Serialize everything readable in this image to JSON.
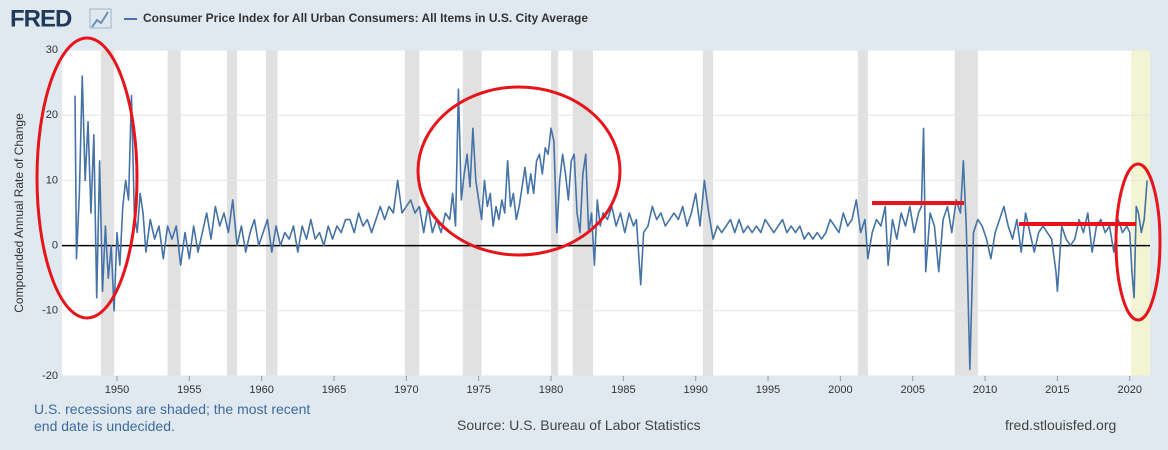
{
  "chart_data": {
    "type": "line",
    "logo": "FRED",
    "ylabel": "Compounded Annual Rate of Change",
    "notes": "U.S. recessions are shaded; the most recent end date is undecided.",
    "source": "Source: U.S. Bureau of Labor Statistics",
    "website": "fred.stlouisfed.org",
    "xlim": [
      1946.2,
      2021.4
    ],
    "xticks": [
      1950,
      1955,
      1960,
      1965,
      1970,
      1975,
      1980,
      1985,
      1990,
      1995,
      2000,
      2005,
      2010,
      2015,
      2020
    ],
    "ylim": [
      -20,
      30
    ],
    "yticks": [
      -20,
      -10,
      0,
      10,
      20,
      30
    ],
    "grid": true,
    "recession_color": "#e1e1e1",
    "recessions": [
      [
        1948.9,
        1949.8
      ],
      [
        1953.5,
        1954.4
      ],
      [
        1957.6,
        1958.3
      ],
      [
        1960.3,
        1961.1
      ],
      [
        1969.9,
        1970.9
      ],
      [
        1973.9,
        1975.2
      ],
      [
        1980.0,
        1980.5
      ],
      [
        1981.5,
        1982.9
      ],
      [
        1990.5,
        1991.2
      ],
      [
        2001.2,
        2001.9
      ],
      [
        2007.9,
        2009.5
      ]
    ],
    "ongoing_recession_color": "#f3f4d2",
    "ongoing_recession": [
      2020.1,
      2021.4
    ],
    "x": [
      1947.1,
      1947.2,
      1947.4,
      1947.6,
      1947.8,
      1948.0,
      1948.2,
      1948.4,
      1948.6,
      1948.8,
      1949.0,
      1949.2,
      1949.4,
      1949.6,
      1949.8,
      1950.0,
      1950.2,
      1950.4,
      1950.6,
      1950.8,
      1951.0,
      1951.2,
      1951.4,
      1951.6,
      1951.8,
      1952.0,
      1952.3,
      1952.6,
      1952.9,
      1953.2,
      1953.5,
      1953.8,
      1954.1,
      1954.4,
      1954.7,
      1955.0,
      1955.3,
      1955.6,
      1955.9,
      1956.2,
      1956.5,
      1956.8,
      1957.1,
      1957.4,
      1957.7,
      1958.0,
      1958.3,
      1958.6,
      1958.9,
      1959.2,
      1959.5,
      1959.8,
      1960.1,
      1960.4,
      1960.7,
      1961.0,
      1961.3,
      1961.6,
      1961.9,
      1962.2,
      1962.5,
      1962.8,
      1963.1,
      1963.4,
      1963.7,
      1964.0,
      1964.3,
      1964.6,
      1964.9,
      1965.2,
      1965.5,
      1965.8,
      1966.1,
      1966.4,
      1966.7,
      1967.0,
      1967.3,
      1967.6,
      1967.9,
      1968.2,
      1968.5,
      1968.8,
      1969.1,
      1969.4,
      1969.7,
      1970.0,
      1970.3,
      1970.6,
      1970.9,
      1971.2,
      1971.5,
      1971.8,
      1972.1,
      1972.4,
      1972.7,
      1973.0,
      1973.2,
      1973.4,
      1973.6,
      1973.8,
      1974.0,
      1974.2,
      1974.4,
      1974.6,
      1974.8,
      1975.0,
      1975.2,
      1975.4,
      1975.6,
      1975.8,
      1976.0,
      1976.2,
      1976.4,
      1976.6,
      1976.8,
      1977.0,
      1977.2,
      1977.4,
      1977.6,
      1977.8,
      1978.0,
      1978.2,
      1978.4,
      1978.6,
      1978.8,
      1979.0,
      1979.2,
      1979.4,
      1979.6,
      1979.8,
      1980.0,
      1980.2,
      1980.4,
      1980.6,
      1980.8,
      1981.0,
      1981.2,
      1981.4,
      1981.6,
      1981.8,
      1982.0,
      1982.2,
      1982.4,
      1982.6,
      1982.8,
      1983.0,
      1983.2,
      1983.4,
      1983.6,
      1983.9,
      1984.2,
      1984.5,
      1984.8,
      1985.1,
      1985.4,
      1985.7,
      1985.9,
      1986.2,
      1986.4,
      1986.7,
      1987.0,
      1987.3,
      1987.6,
      1987.9,
      1988.2,
      1988.5,
      1988.8,
      1989.1,
      1989.4,
      1989.7,
      1990.0,
      1990.3,
      1990.6,
      1990.9,
      1991.2,
      1991.5,
      1991.8,
      1992.1,
      1992.4,
      1992.7,
      1993.0,
      1993.3,
      1993.6,
      1993.9,
      1994.2,
      1994.5,
      1994.8,
      1995.1,
      1995.4,
      1995.7,
      1996.0,
      1996.3,
      1996.6,
      1996.9,
      1997.2,
      1997.5,
      1997.8,
      1998.1,
      1998.4,
      1998.7,
      1999.0,
      1999.3,
      1999.6,
      1999.9,
      2000.2,
      2000.5,
      2000.8,
      2001.1,
      2001.4,
      2001.7,
      2001.9,
      2002.2,
      2002.5,
      2002.8,
      2003.1,
      2003.3,
      2003.6,
      2003.9,
      2004.2,
      2004.5,
      2004.8,
      2005.1,
      2005.4,
      2005.6,
      2005.75,
      2005.9,
      2006.2,
      2006.5,
      2006.8,
      2007.1,
      2007.4,
      2007.7,
      2008.0,
      2008.3,
      2008.5,
      2008.7,
      2008.85,
      2008.95,
      2009.2,
      2009.5,
      2009.8,
      2010.1,
      2010.4,
      2010.7,
      2011.0,
      2011.3,
      2011.6,
      2011.9,
      2012.2,
      2012.5,
      2012.8,
      2013.1,
      2013.4,
      2013.7,
      2014.0,
      2014.3,
      2014.6,
      2014.9,
      2015.0,
      2015.3,
      2015.6,
      2015.9,
      2016.2,
      2016.5,
      2016.8,
      2017.1,
      2017.4,
      2017.7,
      2018.0,
      2018.3,
      2018.6,
      2018.9,
      2019.2,
      2019.5,
      2019.8,
      2020.0,
      2020.15,
      2020.3,
      2020.45,
      2020.6,
      2020.8,
      2021.0,
      2021.2
    ],
    "series": [
      {
        "name": "Consumer Price Index for All Urban Consumers: All Items in U.S. City Average",
        "color": "#4572a7",
        "values": [
          23,
          -2,
          8,
          26,
          10,
          19,
          5,
          17,
          -8,
          13,
          -7,
          3,
          -5,
          0,
          -10,
          2,
          -3,
          6,
          10,
          7,
          23,
          5,
          2,
          8,
          5,
          -1,
          4,
          1,
          3,
          -2,
          3,
          1,
          3,
          -3,
          2,
          -2,
          3,
          -1,
          2,
          5,
          1,
          6,
          3,
          5,
          2,
          7,
          0,
          3,
          -1,
          2,
          4,
          0,
          2,
          4,
          -1,
          3,
          0,
          2,
          1,
          3,
          -1,
          3,
          1,
          4,
          1,
          2,
          0,
          3,
          1,
          3,
          2,
          4,
          4,
          2,
          5,
          3,
          4,
          2,
          4,
          6,
          4,
          6,
          5,
          10,
          5,
          6,
          7,
          5,
          6,
          2,
          6,
          2,
          4,
          2,
          5,
          4,
          8,
          3,
          24,
          7,
          11,
          14,
          9,
          18,
          10,
          7,
          4,
          10,
          6,
          8,
          3,
          6,
          4,
          7,
          5,
          13,
          6,
          8,
          4,
          6,
          9,
          12,
          8,
          11,
          8,
          13,
          14,
          11,
          15,
          14,
          18,
          16,
          2,
          10,
          14,
          11,
          7,
          13,
          14,
          5,
          2,
          11,
          14,
          2,
          5,
          -3,
          7,
          3,
          5,
          4,
          6,
          3,
          5,
          2,
          5,
          3,
          4,
          -6,
          2,
          3,
          6,
          4,
          5,
          3,
          4,
          5,
          4,
          6,
          3,
          5,
          8,
          3,
          10,
          5,
          1,
          3,
          2,
          3,
          4,
          2,
          4,
          2,
          3,
          2,
          3,
          2,
          4,
          3,
          2,
          3,
          4,
          2,
          3,
          2,
          3,
          1,
          2,
          1,
          2,
          1,
          2,
          4,
          3,
          2,
          5,
          3,
          4,
          7,
          2,
          4,
          -2,
          2,
          4,
          3,
          6,
          -3,
          4,
          1,
          5,
          3,
          6,
          2,
          5,
          6,
          18,
          -4,
          5,
          3,
          -4,
          4,
          6,
          2,
          7,
          5,
          13,
          3,
          -10,
          -19,
          2,
          4,
          3,
          1,
          -2,
          2,
          4,
          6,
          3,
          1,
          4,
          -1,
          5,
          2,
          -1,
          2,
          3,
          2,
          1,
          -4,
          -7,
          3,
          1,
          0,
          1,
          4,
          2,
          5,
          -1,
          3,
          4,
          2,
          3,
          -1,
          4,
          2,
          3,
          2,
          -4,
          -8,
          6,
          5,
          2,
          4,
          10
        ]
      }
    ]
  }
}
